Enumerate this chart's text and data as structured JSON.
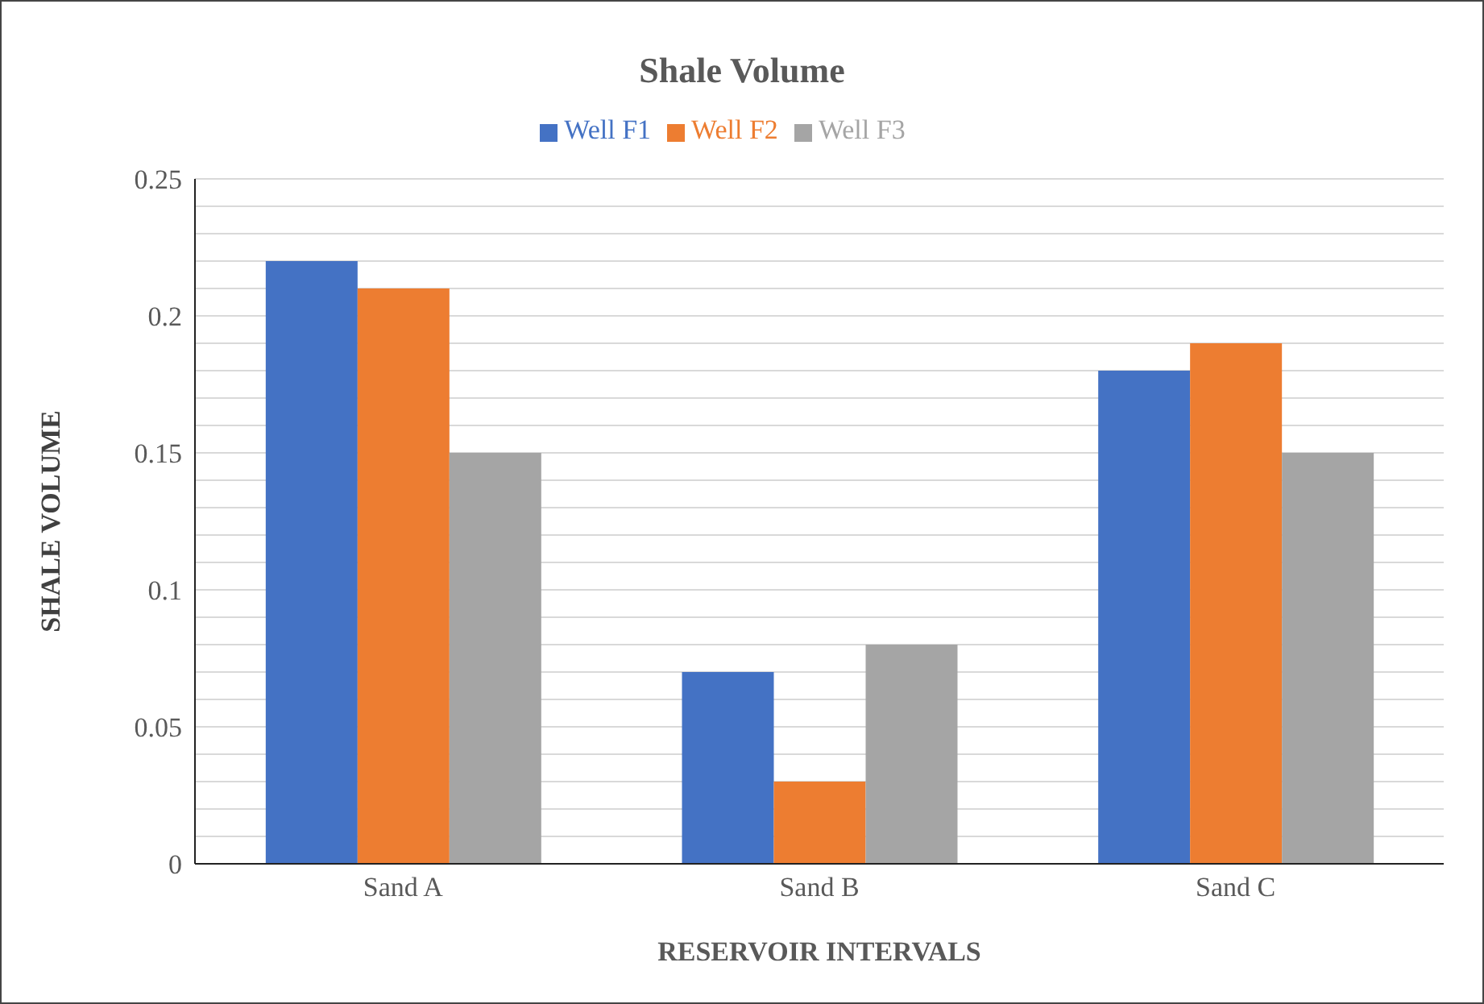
{
  "chart_data": {
    "type": "bar",
    "title": "Shale Volume",
    "xlabel": "RESERVOIR INTERVALS",
    "ylabel": "SHALE VOLUME",
    "categories": [
      "Sand A",
      "Sand B",
      "Sand C"
    ],
    "series": [
      {
        "name": "Well F1",
        "color": "#4472c4",
        "values": [
          0.22,
          0.07,
          0.18
        ]
      },
      {
        "name": "Well F2",
        "color": "#ed7d31",
        "values": [
          0.21,
          0.03,
          0.19
        ]
      },
      {
        "name": "Well F3",
        "color": "#a5a5a5",
        "values": [
          0.15,
          0.08,
          0.15
        ]
      }
    ],
    "ylim": [
      0,
      0.25
    ],
    "yticks": [
      0,
      {
        "value": 0.01,
        "label": null
      },
      {
        "value": 0.02,
        "label": null
      },
      {
        "value": 0.03,
        "label": null
      },
      {
        "value": 0.04,
        "label": null
      },
      0.05,
      {
        "value": 0.06,
        "label": null
      },
      {
        "value": 0.07,
        "label": null
      },
      {
        "value": 0.08,
        "label": null
      },
      {
        "value": 0.09,
        "label": null
      },
      0.1,
      {
        "value": 0.11,
        "label": null
      },
      {
        "value": 0.12,
        "label": null
      },
      {
        "value": 0.13,
        "label": null
      },
      {
        "value": 0.14,
        "label": null
      },
      0.15,
      {
        "value": 0.16,
        "label": null
      },
      {
        "value": 0.17,
        "label": null
      },
      {
        "value": 0.18,
        "label": null
      },
      {
        "value": 0.19,
        "label": null
      },
      0.2,
      {
        "value": 0.21,
        "label": null
      },
      {
        "value": 0.22,
        "label": null
      },
      {
        "value": 0.23,
        "label": null
      },
      {
        "value": 0.24,
        "label": null
      },
      0.25
    ],
    "grid": "y",
    "legend": "top"
  }
}
